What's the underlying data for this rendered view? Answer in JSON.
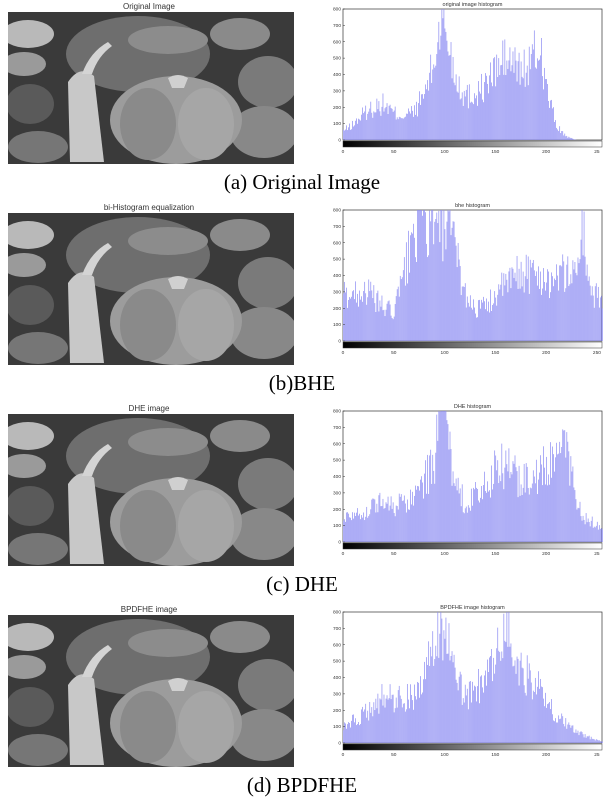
{
  "panels": [
    {
      "image_title": "Original Image",
      "hist_title": "original image histogram",
      "caption": "(a) Original Image",
      "y_ticks": [
        "0",
        "100",
        "200",
        "300",
        "400",
        "500",
        "600",
        "700",
        "800"
      ],
      "x_ticks": [
        "0",
        "50",
        "100",
        "150",
        "200",
        "25"
      ]
    },
    {
      "image_title": "bi-Histogram equalization",
      "hist_title": "bhe histogram",
      "caption": "(b)BHE",
      "y_ticks": [
        "0",
        "100",
        "200",
        "300",
        "400",
        "500",
        "600",
        "700",
        "800"
      ],
      "x_ticks": [
        "0",
        "50",
        "100",
        "150",
        "200",
        "250"
      ]
    },
    {
      "image_title": "DHE image",
      "hist_title": "DHE histogram",
      "caption": "(c) DHE",
      "y_ticks": [
        "0",
        "100",
        "200",
        "300",
        "400",
        "500",
        "600",
        "700",
        "800"
      ],
      "x_ticks": [
        "0",
        "50",
        "100",
        "150",
        "200",
        "25"
      ]
    },
    {
      "image_title": "BPDFHE image",
      "hist_title": "BPDFHE image histogram",
      "caption": "(d) BPDFHE",
      "y_ticks": [
        "0",
        "100",
        "200",
        "300",
        "400",
        "500",
        "600",
        "700",
        "800"
      ],
      "x_ticks": [
        "0",
        "50",
        "100",
        "150",
        "200",
        "25"
      ]
    }
  ],
  "chart_data": [
    {
      "type": "bar",
      "title": "original image histogram",
      "xlim": [
        0,
        255
      ],
      "ylim": [
        0,
        800
      ],
      "x": [
        0,
        10,
        20,
        30,
        40,
        50,
        60,
        70,
        80,
        90,
        95,
        100,
        110,
        120,
        130,
        140,
        150,
        160,
        170,
        180,
        190,
        195,
        200,
        210,
        220,
        230,
        240,
        255
      ],
      "values": [
        60,
        100,
        170,
        210,
        230,
        170,
        160,
        180,
        300,
        500,
        760,
        740,
        420,
        280,
        300,
        350,
        450,
        520,
        470,
        450,
        560,
        560,
        330,
        90,
        20,
        0,
        0,
        0
      ]
    },
    {
      "type": "bar",
      "title": "bhe histogram",
      "xlim": [
        0,
        255
      ],
      "ylim": [
        0,
        800
      ],
      "x": [
        0,
        10,
        20,
        30,
        40,
        50,
        60,
        70,
        80,
        90,
        100,
        110,
        120,
        130,
        140,
        150,
        160,
        170,
        180,
        190,
        200,
        210,
        220,
        230,
        235,
        240,
        245,
        255
      ],
      "values": [
        300,
        300,
        330,
        280,
        210,
        190,
        440,
        720,
        760,
        690,
        760,
        600,
        300,
        210,
        220,
        300,
        360,
        420,
        450,
        420,
        400,
        410,
        440,
        450,
        760,
        480,
        300,
        260
      ]
    },
    {
      "type": "bar",
      "title": "DHE histogram",
      "xlim": [
        0,
        255
      ],
      "ylim": [
        0,
        800
      ],
      "x": [
        0,
        10,
        20,
        30,
        40,
        50,
        60,
        70,
        80,
        90,
        95,
        100,
        110,
        120,
        130,
        140,
        150,
        160,
        170,
        180,
        190,
        200,
        210,
        220,
        230,
        240,
        250,
        255
      ],
      "values": [
        150,
        200,
        180,
        240,
        260,
        240,
        240,
        300,
        400,
        520,
        780,
        790,
        340,
        260,
        300,
        360,
        460,
        500,
        420,
        400,
        440,
        480,
        500,
        620,
        250,
        140,
        110,
        100
      ]
    },
    {
      "type": "bar",
      "title": "BPDFHE image histogram",
      "xlim": [
        0,
        255
      ],
      "ylim": [
        0,
        800
      ],
      "x": [
        0,
        10,
        20,
        30,
        40,
        50,
        60,
        70,
        80,
        90,
        95,
        100,
        110,
        120,
        130,
        140,
        150,
        160,
        170,
        180,
        190,
        200,
        210,
        220,
        230,
        240,
        250,
        255
      ],
      "values": [
        100,
        150,
        180,
        240,
        300,
        280,
        290,
        310,
        430,
        600,
        800,
        760,
        400,
        300,
        340,
        420,
        520,
        800,
        480,
        440,
        380,
        260,
        180,
        120,
        70,
        40,
        20,
        10
      ]
    }
  ],
  "colors": {
    "bar": "#8c8cf2",
    "caption": "#000000"
  }
}
